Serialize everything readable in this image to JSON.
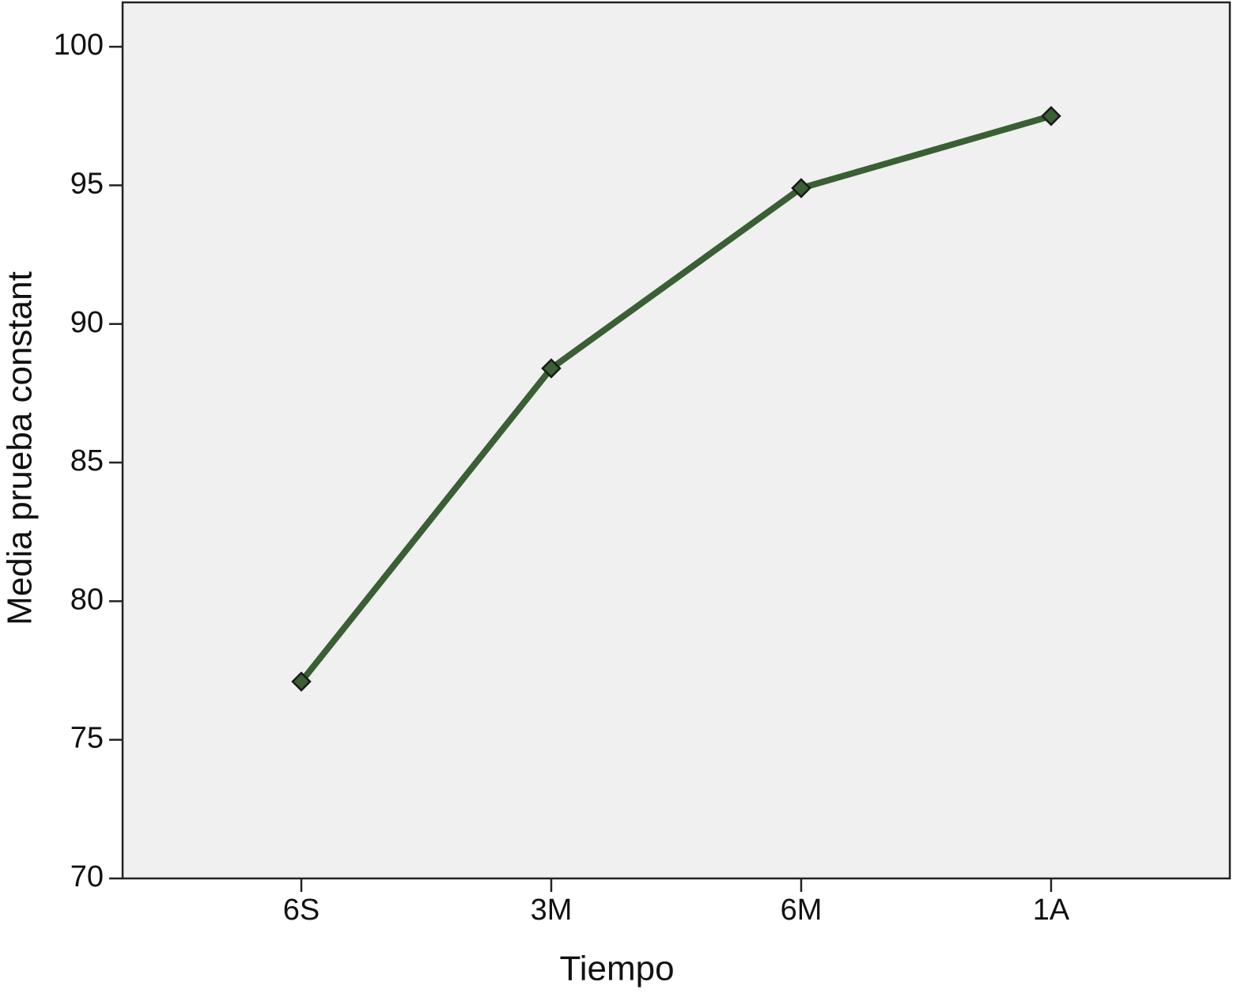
{
  "chart_data": {
    "type": "line",
    "x_label": "Tiempo",
    "y_label": "Media prueba constant",
    "categories": [
      "6S",
      "3M",
      "6M",
      "1A"
    ],
    "series": [
      {
        "name": "Media prueba constant",
        "color": "#3a5f34",
        "values": [
          77.1,
          88.4,
          94.9,
          97.5
        ]
      }
    ],
    "ylim": [
      70,
      101.6
    ],
    "yticks": [
      70,
      75,
      80,
      85,
      90,
      95,
      100
    ],
    "grid": false
  }
}
